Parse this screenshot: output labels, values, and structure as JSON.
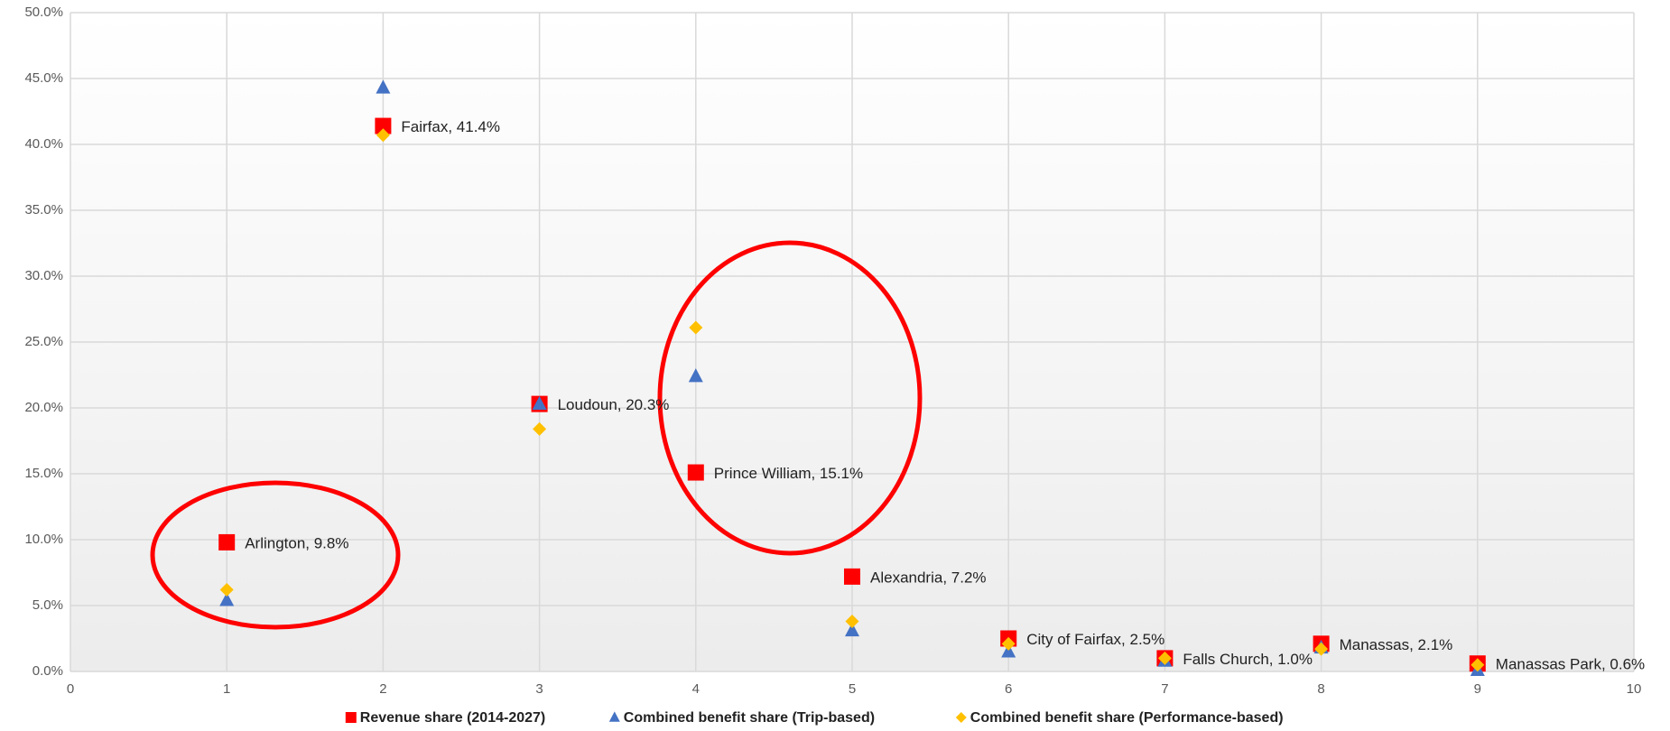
{
  "chart_data": {
    "type": "scatter",
    "x": [
      1,
      2,
      3,
      4,
      5,
      6,
      7,
      8,
      9
    ],
    "xlim": [
      0,
      10
    ],
    "xticks": [
      0,
      1,
      2,
      3,
      4,
      5,
      6,
      7,
      8,
      9,
      10
    ],
    "ylim": [
      0,
      50
    ],
    "yticks": [
      {
        "value": 0,
        "label": "0.0%"
      },
      {
        "value": 5,
        "label": "5.0%"
      },
      {
        "value": 10,
        "label": "10.0%"
      },
      {
        "value": 15,
        "label": "15.0%"
      },
      {
        "value": 20,
        "label": "20.0%"
      },
      {
        "value": 25,
        "label": "25.0%"
      },
      {
        "value": 30,
        "label": "30.0%"
      },
      {
        "value": 35,
        "label": "35.0%"
      },
      {
        "value": 40,
        "label": "40.0%"
      },
      {
        "value": 45,
        "label": "45.0%"
      },
      {
        "value": 50,
        "label": "50.0%"
      }
    ],
    "grid": true,
    "legend": "bottom",
    "series": [
      {
        "name": "Revenue share (2014-2027)",
        "color": "#ff0000",
        "marker": "square",
        "values": [
          9.8,
          41.4,
          20.3,
          15.1,
          7.2,
          2.5,
          1.0,
          2.1,
          0.6
        ],
        "value_labels": [
          "Arlington, 9.8%",
          "Fairfax, 41.4%",
          "Loudoun, 20.3%",
          "Prince William, 15.1%",
          "Alexandria, 7.2%",
          "City of Fairfax, 2.5%",
          "Falls Church, 1.0%",
          "Manassas, 2.1%",
          "Manassas Park, 0.6%"
        ]
      },
      {
        "name": "Combined benefit share (Trip-based)",
        "color": "#4472c4",
        "marker": "triangle",
        "values": [
          5.4,
          44.3,
          20.3,
          22.4,
          3.1,
          1.5,
          0.8,
          1.8,
          0.1
        ]
      },
      {
        "name": "Combined benefit share (Performance-based)",
        "color": "#ffc000",
        "marker": "diamond",
        "values": [
          6.2,
          40.7,
          18.4,
          26.1,
          3.8,
          2.1,
          1.0,
          1.7,
          0.5
        ]
      }
    ]
  }
}
